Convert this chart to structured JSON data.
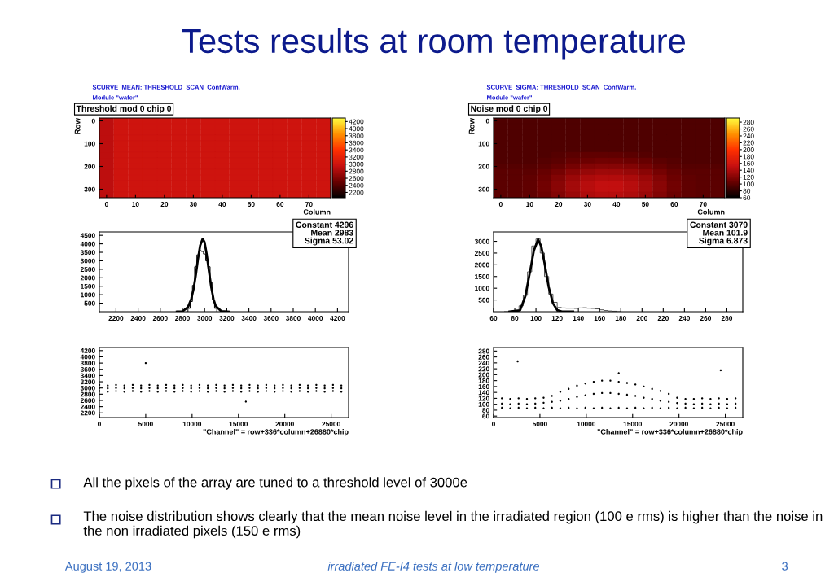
{
  "chart_data": [
    {
      "type": "other",
      "title": "Tests results at room temperature",
      "annotations": [
        "All the pixels of the array are tuned to a threshold level of 3000e",
        "The noise distribution shows clearly that the mean noise level in the irradiated region (100 e rms) is higher than the noise in the non irradiated pixels (150 e rms)",
        "August 19, 2013",
        "irradiated FE-I4 tests at low temperature",
        "3"
      ]
    },
    {
      "type": "heatmap",
      "title": "Threshold mod 0 chip 0",
      "annotations": [
        "SCURVE_MEAN: THRESHOLD_SCAN_ConfWarm.",
        "Module \"wafer\""
      ],
      "xlabel": "Column",
      "ylabel": "Row",
      "categories": [
        "0",
        null,
        "10",
        null,
        "20",
        null,
        "30",
        null,
        "40",
        null,
        "50",
        null,
        "60",
        null,
        "70",
        null
      ],
      "y_categories": [
        "0",
        null,
        null,
        null,
        "100",
        null,
        null,
        null,
        "200",
        null,
        null,
        null,
        "300",
        null
      ],
      "cells": [
        [
          2900,
          3000,
          3000,
          3000,
          3000,
          3000,
          3000,
          3000,
          3000,
          3000,
          3000,
          3000,
          3000,
          3000,
          3000,
          3000
        ],
        [
          2900,
          3000,
          3000,
          3000,
          3000,
          3000,
          3000,
          3000,
          3000,
          3000,
          3000,
          3000,
          3000,
          3000,
          3000,
          3000
        ],
        [
          2900,
          3000,
          3000,
          3000,
          3000,
          3000,
          3000,
          3000,
          3000,
          3000,
          3000,
          3000,
          3000,
          3000,
          3000,
          3000
        ],
        [
          2900,
          3000,
          3000,
          3000,
          3000,
          3000,
          3000,
          3000,
          3000,
          3000,
          3000,
          3000,
          3000,
          3000,
          3000,
          3000
        ],
        [
          2900,
          3000,
          3000,
          3000,
          3000,
          3000,
          3000,
          3000,
          3000,
          3000,
          3000,
          3000,
          3000,
          3000,
          3000,
          3000
        ],
        [
          2900,
          3000,
          3000,
          3000,
          3000,
          3000,
          3000,
          3000,
          3000,
          3000,
          3000,
          3000,
          3000,
          3000,
          3000,
          3000
        ],
        [
          2900,
          3000,
          3000,
          3000,
          3000,
          3000,
          3000,
          3000,
          3000,
          3000,
          3000,
          3000,
          3000,
          3000,
          3000,
          3000
        ],
        [
          2900,
          3000,
          3000,
          3000,
          3000,
          3000,
          3000,
          3000,
          3000,
          3000,
          3000,
          3000,
          3000,
          3000,
          3000,
          3000
        ],
        [
          2900,
          3000,
          3000,
          3000,
          3000,
          3000,
          3000,
          3000,
          3000,
          3000,
          3000,
          3000,
          3000,
          3000,
          3000,
          3000
        ],
        [
          2900,
          3000,
          3000,
          3000,
          3000,
          3000,
          3000,
          3000,
          3000,
          3000,
          3000,
          3000,
          3000,
          3000,
          3000,
          3000
        ],
        [
          2900,
          3000,
          3000,
          3000,
          3000,
          3000,
          3000,
          3000,
          3000,
          3000,
          3000,
          3000,
          3000,
          3000,
          3000,
          3000
        ],
        [
          2900,
          3000,
          3000,
          3000,
          3000,
          3000,
          3000,
          3000,
          3000,
          3000,
          3000,
          3000,
          3000,
          3000,
          3000,
          3000
        ],
        [
          2900,
          3000,
          3000,
          3000,
          3000,
          3000,
          3000,
          3000,
          3000,
          3000,
          3000,
          3000,
          3000,
          3000,
          3000,
          3000
        ],
        [
          2900,
          3000,
          3000,
          3000,
          3000,
          3000,
          3000,
          3000,
          3000,
          3000,
          3000,
          3000,
          3000,
          3000,
          3000,
          3000
        ]
      ],
      "clim": [
        2050,
        4300
      ],
      "cticks": [
        2200,
        2400,
        2600,
        2800,
        3000,
        3200,
        3400,
        3600,
        3800,
        4000,
        4200
      ]
    },
    {
      "type": "heatmap",
      "title": "Noise mod 0 chip 0",
      "annotations": [
        "SCURVE_SIGMA: THRESHOLD_SCAN_ConfWarm.",
        "Module \"wafer\""
      ],
      "xlabel": "Column",
      "ylabel": "Row",
      "categories": [
        "0",
        null,
        "10",
        null,
        "20",
        null,
        "30",
        null,
        "40",
        null,
        "50",
        null,
        "60",
        null,
        "70",
        null
      ],
      "y_categories": [
        "0",
        null,
        null,
        null,
        "100",
        null,
        null,
        null,
        "200",
        null,
        null,
        null,
        "300",
        null
      ],
      "cells": [
        [
          95,
          95,
          95,
          95,
          95,
          95,
          95,
          95,
          95,
          95,
          95,
          95,
          95,
          95,
          95,
          95
        ],
        [
          95,
          95,
          95,
          95,
          95,
          95,
          95,
          95,
          95,
          95,
          95,
          95,
          95,
          95,
          95,
          95
        ],
        [
          95,
          95,
          95,
          95,
          95,
          95,
          95,
          95,
          95,
          95,
          95,
          95,
          95,
          95,
          95,
          95
        ],
        [
          95,
          95,
          95,
          95,
          95,
          95,
          95,
          95,
          95,
          95,
          95,
          95,
          95,
          95,
          95,
          95
        ],
        [
          95,
          95,
          95,
          95,
          95,
          95,
          95,
          95,
          95,
          95,
          95,
          95,
          95,
          95,
          95,
          95
        ],
        [
          95,
          95,
          95,
          95,
          95,
          95,
          95,
          95,
          95,
          95,
          95,
          95,
          95,
          95,
          95,
          95
        ],
        [
          95,
          95,
          95,
          95,
          98,
          100,
          102,
          102,
          102,
          100,
          98,
          95,
          95,
          95,
          95,
          95
        ],
        [
          95,
          95,
          95,
          98,
          100,
          105,
          108,
          110,
          110,
          108,
          105,
          100,
          98,
          95,
          95,
          95
        ],
        [
          98,
          98,
          98,
          100,
          105,
          112,
          118,
          120,
          120,
          118,
          112,
          105,
          100,
          98,
          98,
          98
        ],
        [
          100,
          100,
          100,
          105,
          112,
          122,
          128,
          132,
          132,
          128,
          122,
          112,
          105,
          100,
          100,
          100
        ],
        [
          100,
          100,
          102,
          108,
          118,
          130,
          138,
          142,
          142,
          138,
          130,
          118,
          108,
          102,
          100,
          100
        ],
        [
          100,
          100,
          102,
          110,
          122,
          135,
          145,
          150,
          150,
          145,
          135,
          122,
          110,
          102,
          100,
          100
        ],
        [
          100,
          100,
          102,
          110,
          122,
          135,
          145,
          150,
          150,
          145,
          135,
          122,
          110,
          102,
          100,
          100
        ],
        [
          100,
          100,
          102,
          108,
          118,
          130,
          140,
          145,
          145,
          140,
          130,
          118,
          108,
          102,
          100,
          100
        ]
      ],
      "clim": [
        60,
        292
      ],
      "cticks": [
        60,
        80,
        100,
        120,
        140,
        160,
        180,
        200,
        220,
        240,
        260,
        280
      ]
    },
    {
      "type": "histogram",
      "annotations": [
        "Constant 4296",
        "Mean 2983",
        "Sigma 53.02"
      ],
      "bins": [
        2850,
        2870,
        2890,
        2910,
        2930,
        2950,
        2970,
        2990,
        3010,
        3030,
        3050,
        3070,
        3090,
        3110
      ],
      "values": [
        200,
        600,
        1550,
        2650,
        3350,
        3600,
        3550,
        3400,
        3000,
        2650,
        1750,
        700,
        200
      ],
      "color": "#000000",
      "series": [
        {
          "type": "line",
          "color": "#000000",
          "x": [
            2750,
            2800,
            2850,
            2880,
            2900,
            2920,
            2940,
            2960,
            2983,
            3000,
            3020,
            3040,
            3060,
            3080,
            3100,
            3150,
            3220
          ],
          "values": [
            0,
            20,
            270,
            760,
            1330,
            2130,
            3100,
            3900,
            4300,
            4090,
            3330,
            2360,
            1450,
            750,
            340,
            30,
            0
          ]
        }
      ],
      "xlim": [
        2050,
        4300
      ],
      "xticks": [
        2200,
        2400,
        2600,
        2800,
        3000,
        3200,
        3400,
        3600,
        3800,
        4000,
        4200
      ],
      "ylim": [
        0,
        4700
      ],
      "yticks": [
        500,
        1000,
        1500,
        2000,
        2500,
        3000,
        3500,
        4000,
        4500
      ]
    },
    {
      "type": "histogram",
      "annotations": [
        "Constant 3079",
        "Mean 101.9",
        "Sigma 6.873"
      ],
      "bins": [
        70,
        80,
        84,
        88,
        92,
        96,
        100,
        104,
        108,
        112,
        116,
        120,
        124,
        128,
        132,
        136,
        140,
        144,
        148,
        152,
        156,
        160,
        164,
        168,
        172,
        176,
        180
      ],
      "values": [
        0,
        60,
        250,
        700,
        1700,
        2800,
        3100,
        2500,
        1500,
        750,
        400,
        180,
        160,
        150,
        150,
        140,
        160,
        170,
        150,
        140,
        120,
        80,
        50,
        30,
        20,
        0
      ],
      "color": "#505050",
      "series": [
        {
          "type": "line",
          "color": "#000000",
          "x": [
            75,
            85,
            90,
            95,
            98,
            102,
            105,
            108,
            112,
            116,
            120,
            125,
            135
          ],
          "values": [
            0,
            60,
            670,
            1860,
            2600,
            3080,
            2780,
            2090,
            1050,
            360,
            70,
            0,
            0
          ]
        }
      ],
      "xlim": [
        60,
        295
      ],
      "xticks": [
        60,
        80,
        100,
        120,
        140,
        160,
        180,
        200,
        220,
        240,
        260,
        280
      ],
      "ylim": [
        0,
        3400
      ],
      "yticks": [
        500,
        1000,
        1500,
        2000,
        2500,
        3000
      ]
    },
    {
      "type": "scatter",
      "xlabel": "\"Channel\" = row+336*column+26880*chip",
      "color": "#000000",
      "marker": "circle",
      "x": [
        0,
        900,
        1800,
        2700,
        3600,
        4500,
        5400,
        6300,
        7200,
        8100,
        9000,
        9900,
        10800,
        11700,
        12600,
        13500,
        14400,
        15300,
        16200,
        17100,
        18000,
        18900,
        19800,
        20700,
        21600,
        22500,
        23400,
        24300,
        25200,
        26100,
        0,
        900,
        1800,
        2700,
        3600,
        4500,
        5400,
        6300,
        7200,
        8100,
        9000,
        9900,
        10800,
        11700,
        12600,
        13500,
        14400,
        15300,
        16200,
        17100,
        18000,
        18900,
        19800,
        20700,
        21600,
        22500,
        23400,
        24300,
        25200,
        26100,
        0,
        900,
        1800,
        2700,
        3600,
        4500,
        5400,
        6300,
        7200,
        8100,
        9000,
        9900,
        10800,
        11700,
        12600,
        13500,
        14400,
        15300,
        16200,
        17100,
        18000,
        18900,
        19800,
        20700,
        21600,
        22500,
        23400,
        24300,
        25200,
        26100,
        5000,
        15800
      ],
      "values": [
        3100,
        3080,
        3100,
        3080,
        3100,
        3080,
        3100,
        3080,
        3100,
        3080,
        3100,
        3080,
        3100,
        3080,
        3100,
        3080,
        3100,
        3080,
        3100,
        3080,
        3100,
        3080,
        3100,
        3080,
        3100,
        3080,
        3100,
        3080,
        3100,
        3080,
        3000,
        2990,
        3000,
        2990,
        3000,
        2990,
        3000,
        2990,
        3000,
        2990,
        3000,
        2990,
        3000,
        2990,
        3000,
        2990,
        3000,
        2990,
        3000,
        2990,
        3000,
        2990,
        3000,
        2990,
        3000,
        2990,
        3000,
        2990,
        3000,
        2990,
        2900,
        2880,
        2900,
        2880,
        2900,
        2880,
        2900,
        2880,
        2900,
        2880,
        2900,
        2880,
        2900,
        2880,
        2900,
        2880,
        2900,
        2880,
        2900,
        2880,
        2900,
        2880,
        2900,
        2880,
        2900,
        2880,
        2900,
        2880,
        2900,
        2880,
        3800,
        2560
      ],
      "xlim": [
        0,
        26880
      ],
      "xticks": [
        0,
        5000,
        10000,
        15000,
        20000,
        25000
      ],
      "ylim": [
        2050,
        4300
      ],
      "yticks": [
        2200,
        2400,
        2600,
        2800,
        3000,
        3200,
        3400,
        3600,
        3800,
        4000,
        4200
      ]
    },
    {
      "type": "scatter",
      "xlabel": "\"Channel\" = row+336*column+26880*chip",
      "color": "#000000",
      "marker": "circle",
      "x": [
        0,
        900,
        1800,
        2700,
        3600,
        4500,
        5400,
        6300,
        7200,
        8100,
        9000,
        9900,
        10800,
        11700,
        12600,
        13500,
        14400,
        15300,
        16200,
        17100,
        18000,
        18900,
        19800,
        20700,
        21600,
        22500,
        23400,
        24300,
        25200,
        26100,
        0,
        900,
        1800,
        2700,
        3600,
        4500,
        5400,
        6300,
        7200,
        8100,
        9000,
        9900,
        10800,
        11700,
        12600,
        13500,
        14400,
        15300,
        16200,
        17100,
        18000,
        18900,
        19800,
        20700,
        21600,
        22500,
        23400,
        24300,
        25200,
        26100,
        0,
        900,
        1800,
        2700,
        3600,
        4500,
        5400,
        6300,
        7200,
        8100,
        9000,
        9900,
        10800,
        11700,
        12600,
        13500,
        14400,
        15300,
        16200,
        17100,
        18000,
        18900,
        19800,
        20700,
        21600,
        22500,
        23400,
        24300,
        25200,
        26100,
        2600,
        13500,
        24500
      ],
      "values": [
        118,
        120,
        118,
        120,
        118,
        120,
        122,
        128,
        142,
        152,
        163,
        170,
        176,
        180,
        180,
        176,
        172,
        167,
        160,
        152,
        145,
        135,
        122,
        118,
        118,
        120,
        118,
        120,
        118,
        120,
        100,
        102,
        100,
        102,
        100,
        102,
        105,
        108,
        112,
        118,
        125,
        130,
        135,
        138,
        138,
        135,
        132,
        128,
        122,
        118,
        112,
        108,
        104,
        102,
        100,
        102,
        100,
        102,
        100,
        102,
        86,
        88,
        86,
        88,
        86,
        88,
        86,
        88,
        86,
        88,
        86,
        88,
        86,
        88,
        86,
        88,
        86,
        88,
        86,
        88,
        86,
        88,
        86,
        88,
        86,
        88,
        86,
        88,
        86,
        88,
        245,
        205,
        215
      ],
      "xlim": [
        0,
        26880
      ],
      "xticks": [
        0,
        5000,
        10000,
        15000,
        20000,
        25000
      ],
      "ylim": [
        55,
        292
      ],
      "yticks": [
        60,
        80,
        100,
        120,
        140,
        160,
        180,
        200,
        220,
        240,
        260,
        280
      ]
    }
  ]
}
